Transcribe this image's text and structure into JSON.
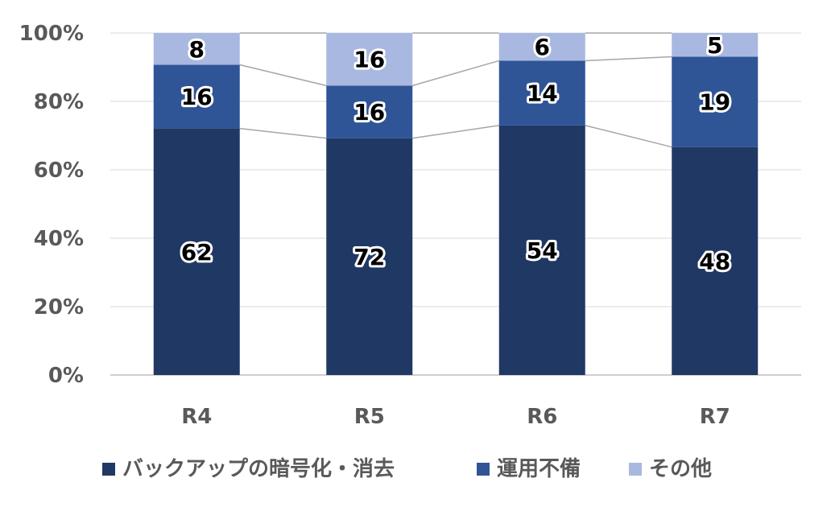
{
  "chart_data": {
    "type": "bar",
    "stacked": "percent",
    "categories": [
      "R4",
      "R5",
      "R6",
      "R7"
    ],
    "series": [
      {
        "name": "バックアップの暗号化・消去",
        "values": [
          62,
          72,
          54,
          48
        ],
        "color": "#203864"
      },
      {
        "name": "運用不備",
        "values": [
          16,
          16,
          14,
          19
        ],
        "color": "#2F5597"
      },
      {
        "name": "その他",
        "values": [
          8,
          16,
          6,
          5
        ],
        "color": "#A9B8E0"
      }
    ],
    "y_ticks": [
      "0%",
      "20%",
      "40%",
      "60%",
      "80%",
      "100%"
    ],
    "ylim": [
      0,
      100
    ],
    "grid": true,
    "series_lines": true,
    "legend_position": "bottom"
  }
}
